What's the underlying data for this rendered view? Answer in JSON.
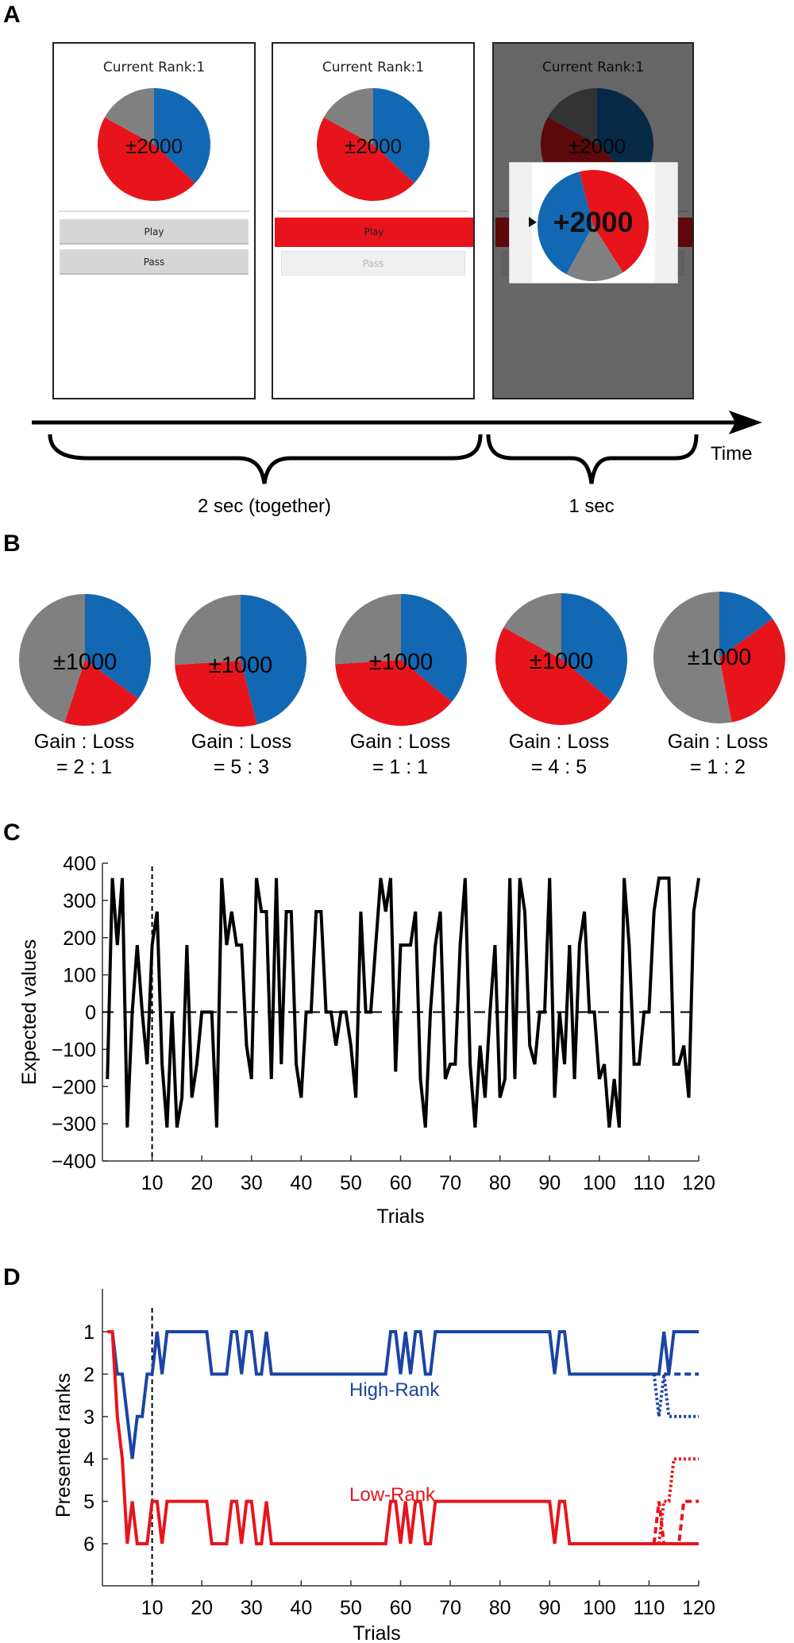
{
  "panels": {
    "A": {
      "letter": "A",
      "screens": [
        {
          "title": "Current Rank:1",
          "pie_label": "±2000",
          "play": "Play",
          "pass": "Pass",
          "state": "choice"
        },
        {
          "title": "Current Rank:1",
          "pie_label": "±2000",
          "play": "Play",
          "pass": "Pass",
          "state": "play-selected"
        },
        {
          "title": "Current Rank:1",
          "pie_label": "±2000",
          "play": "Play",
          "pass": "Pass",
          "state": "outcome",
          "outcome_label": "+2000"
        }
      ],
      "timeline": {
        "axis_label": "Time",
        "brace1_label": "2 sec (together)",
        "brace2_label": "1 sec"
      },
      "pie_fractions": {
        "gain": 0.37,
        "loss": 0.46,
        "neutral": 0.17
      },
      "outcome_pie_fractions": {
        "loss": 0.45,
        "neutral": 0.17,
        "gain": 0.38
      }
    },
    "B": {
      "letter": "B",
      "pies": [
        {
          "label": "±1000",
          "ratio_title": "Gain : Loss",
          "ratio_value": "=  2 : 1",
          "gain": 0.35,
          "loss": 0.2,
          "neutral": 0.45
        },
        {
          "label": "±1000",
          "ratio_title": "Gain : Loss",
          "ratio_value": "=  5 : 3",
          "gain": 0.46,
          "loss": 0.28,
          "neutral": 0.26
        },
        {
          "label": "±1000",
          "ratio_title": "Gain : Loss",
          "ratio_value": "=  1 : 1",
          "gain": 0.36,
          "loss": 0.38,
          "neutral": 0.26
        },
        {
          "label": "±1000",
          "ratio_title": "Gain : Loss",
          "ratio_value": "=  4 : 5",
          "gain": 0.36,
          "loss": 0.47,
          "neutral": 0.17
        },
        {
          "label": "±1000",
          "ratio_title": "Gain : Loss",
          "ratio_value": "=  1 : 2",
          "gain": 0.15,
          "loss": 0.32,
          "neutral": 0.53
        }
      ]
    },
    "C": {
      "letter": "C"
    },
    "D": {
      "letter": "D"
    }
  },
  "colors": {
    "gain": "#1368b3",
    "loss": "#e8141b",
    "neutral": "#808080",
    "high_rank": "#1b44a3",
    "low_rank": "#e8141b"
  },
  "chart_data": [
    {
      "type": "line",
      "title": "",
      "xlabel": "Trials",
      "ylabel": "Expected values",
      "xlim": [
        0,
        120
      ],
      "ylim": [
        -400,
        400
      ],
      "xticks": [
        10,
        20,
        30,
        40,
        50,
        60,
        70,
        80,
        90,
        100,
        110,
        120
      ],
      "yticks": [
        400,
        300,
        200,
        100,
        0,
        -100,
        -200,
        -300,
        -400
      ],
      "reference_lines": {
        "horizontal_dashed_y": 0,
        "vertical_dashed_x": 10
      },
      "series": [
        {
          "name": "Expected value",
          "x_start": 1,
          "values": [
            -180,
            360,
            180,
            360,
            -310,
            0,
            180,
            0,
            -140,
            180,
            270,
            -140,
            -310,
            0,
            -310,
            -230,
            180,
            -230,
            -140,
            0,
            0,
            0,
            -310,
            360,
            180,
            270,
            180,
            180,
            -90,
            -180,
            360,
            270,
            270,
            -180,
            360,
            -140,
            270,
            270,
            -140,
            -230,
            0,
            0,
            270,
            270,
            0,
            0,
            -90,
            0,
            0,
            -90,
            -230,
            270,
            0,
            0,
            180,
            360,
            270,
            360,
            -160,
            180,
            180,
            180,
            270,
            -180,
            -310,
            0,
            180,
            270,
            -180,
            -140,
            -140,
            180,
            360,
            -140,
            -310,
            -90,
            -230,
            0,
            180,
            -230,
            -180,
            360,
            -180,
            360,
            270,
            -90,
            -140,
            0,
            0,
            360,
            -230,
            0,
            -140,
            180,
            -180,
            180,
            270,
            0,
            0,
            -180,
            -140,
            -310,
            -180,
            -310,
            360,
            180,
            -140,
            -140,
            0,
            0,
            270,
            360,
            360,
            360,
            -140,
            -140,
            -90,
            -230,
            270,
            360
          ]
        }
      ]
    },
    {
      "type": "line",
      "title": "",
      "xlabel": "Trials",
      "ylabel": "Presented ranks",
      "xlim": [
        0,
        120
      ],
      "ylim": [
        7,
        0
      ],
      "xticks": [
        10,
        20,
        30,
        40,
        50,
        60,
        70,
        80,
        90,
        100,
        110,
        120
      ],
      "yticks": [
        1,
        2,
        3,
        4,
        5,
        6
      ],
      "reference_lines": {
        "vertical_dashed_x": 10
      },
      "annotations": [
        {
          "text": "High-Rank",
          "color": "#1b44a3"
        },
        {
          "text": "Low-Rank",
          "color": "#e8141b"
        }
      ],
      "series": [
        {
          "name": "High-Rank",
          "style": "solid",
          "color": "#1b44a3",
          "x_start": 1,
          "values": [
            1,
            1,
            2,
            2,
            3,
            4,
            3,
            3,
            2,
            2,
            1,
            2,
            1,
            1,
            1,
            1,
            1,
            1,
            1,
            1,
            1,
            2,
            2,
            2,
            2,
            1,
            1,
            2,
            1,
            1,
            2,
            2,
            1,
            2,
            2,
            2,
            2,
            2,
            2,
            2,
            2,
            2,
            2,
            2,
            2,
            2,
            2,
            2,
            2,
            2,
            2,
            2,
            2,
            2,
            2,
            2,
            2,
            1,
            1,
            2,
            1,
            2,
            1,
            1,
            2,
            2,
            1,
            1,
            1,
            1,
            1,
            1,
            1,
            1,
            1,
            1,
            1,
            1,
            1,
            1,
            1,
            1,
            1,
            1,
            1,
            1,
            1,
            1,
            1,
            1,
            2,
            1,
            1,
            2,
            2,
            2,
            2,
            2,
            2,
            2,
            2,
            2,
            2,
            2,
            2,
            2,
            2,
            2,
            2,
            2,
            2,
            2,
            1,
            2,
            1,
            1,
            1,
            1,
            1,
            1
          ]
        },
        {
          "name": "High-Rank (alt dashed)",
          "style": "dashed",
          "color": "#1b44a3",
          "x_start": 113,
          "values": [
            2,
            2,
            2,
            2,
            2,
            2,
            2,
            2
          ]
        },
        {
          "name": "High-Rank (alt dotted)",
          "style": "dotted",
          "color": "#1b44a3",
          "x_start": 111,
          "values": [
            2,
            3,
            2,
            3,
            3,
            3,
            3,
            3,
            3,
            3
          ]
        },
        {
          "name": "Low-Rank",
          "style": "solid",
          "color": "#e8141b",
          "x_start": 1,
          "values": [
            1,
            1,
            3,
            4,
            6,
            5,
            6,
            6,
            6,
            5,
            5,
            6,
            5,
            5,
            5,
            5,
            5,
            5,
            5,
            5,
            5,
            6,
            6,
            6,
            6,
            5,
            5,
            6,
            5,
            5,
            6,
            6,
            5,
            6,
            6,
            6,
            6,
            6,
            6,
            6,
            6,
            6,
            6,
            6,
            6,
            6,
            6,
            6,
            6,
            6,
            6,
            6,
            6,
            6,
            6,
            6,
            6,
            5,
            5,
            6,
            5,
            6,
            5,
            5,
            6,
            6,
            5,
            5,
            5,
            5,
            5,
            5,
            5,
            5,
            5,
            5,
            5,
            5,
            5,
            5,
            5,
            5,
            5,
            5,
            5,
            5,
            5,
            5,
            5,
            5,
            6,
            5,
            5,
            6,
            6,
            6,
            6,
            6,
            6,
            6,
            6,
            6,
            6,
            6,
            6,
            6,
            6,
            6,
            6,
            6,
            6,
            6,
            6,
            6,
            6,
            6,
            6,
            6,
            6,
            6
          ]
        },
        {
          "name": "Low-Rank (alt dashed)",
          "style": "dashed",
          "color": "#e8141b",
          "x_start": 111,
          "values": [
            6,
            5,
            6,
            6,
            6,
            6,
            5,
            5,
            5,
            5
          ]
        },
        {
          "name": "Low-Rank (alt dotted)",
          "style": "dotted",
          "color": "#e8141b",
          "x_start": 112,
          "values": [
            6,
            5,
            5,
            4,
            4,
            4,
            4,
            4,
            4
          ]
        }
      ]
    }
  ]
}
